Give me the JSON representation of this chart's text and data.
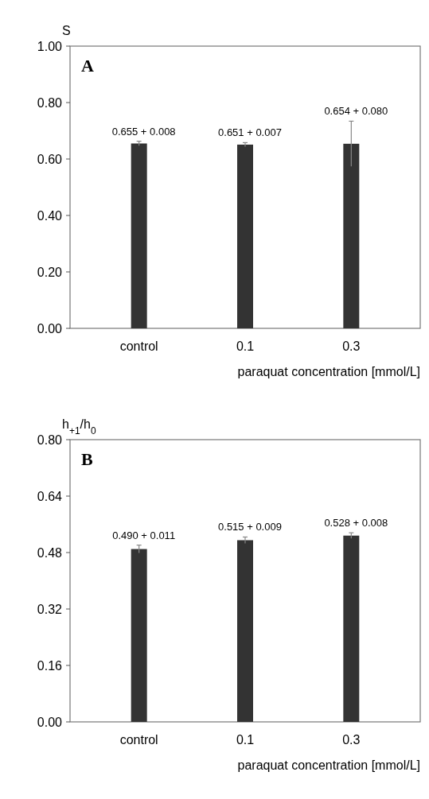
{
  "chart_data": [
    {
      "type": "bar",
      "ylabel": "S",
      "xlabel": "paraquat concentration [mmol/L]",
      "categories": [
        "control",
        "0.1",
        "0.3"
      ],
      "values": [
        0.655,
        0.651,
        0.654
      ],
      "errors": [
        0.008,
        0.007,
        0.08
      ],
      "value_labels": [
        "0.655 + 0.008",
        "0.651 + 0.007",
        "0.654 + 0.080"
      ],
      "color": "#333333",
      "ylim": [
        0,
        1
      ],
      "yticks": [
        {
          "value": 0,
          "label": "0.00"
        },
        {
          "value": 0.2,
          "label": "0.20"
        },
        {
          "value": 0.4,
          "label": "0.40"
        },
        {
          "value": 0.6,
          "label": "0.60"
        },
        {
          "value": 0.8,
          "label": "0.80"
        },
        {
          "value": 1,
          "label": "1.00"
        }
      ],
      "annotations": [
        "A"
      ]
    },
    {
      "type": "bar",
      "ylabel": "h$_{+1}$/h$_{0}$",
      "xlabel": "paraquat concentration [mmol/L]",
      "categories": [
        "control",
        "0.1",
        "0.3"
      ],
      "values": [
        0.49,
        0.515,
        0.528
      ],
      "errors": [
        0.011,
        0.009,
        0.008
      ],
      "value_labels": [
        "0.490 + 0.011",
        "0.515 + 0.009",
        "0.528 + 0.008"
      ],
      "color": "#333333",
      "ylim": [
        0,
        0.8
      ],
      "yticks": [
        {
          "value": 0,
          "label": "0.00"
        },
        {
          "value": 0.16,
          "label": "0.16"
        },
        {
          "value": 0.32,
          "label": "0.32"
        },
        {
          "value": 0.48,
          "label": "0.48"
        },
        {
          "value": 0.64,
          "label": "0.64"
        },
        {
          "value": 0.8,
          "label": "0.80"
        }
      ],
      "annotations": [
        "B"
      ]
    }
  ]
}
